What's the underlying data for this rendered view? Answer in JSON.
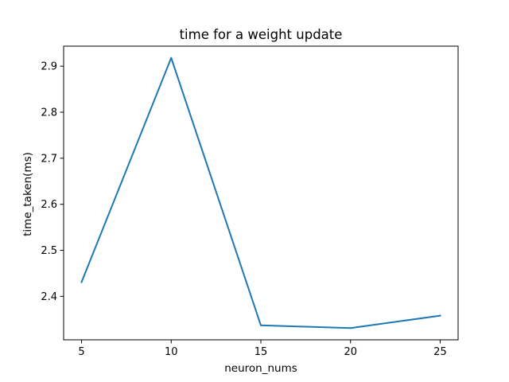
{
  "chart_data": {
    "type": "line",
    "title": "time for a weight update",
    "xlabel": "neuron_nums",
    "ylabel": "time_taken(ms)",
    "x": [
      5,
      10,
      15,
      20,
      25
    ],
    "series": [
      {
        "values": [
          2.431,
          2.918,
          2.337,
          2.331,
          2.358
        ],
        "color": "#1f77b4"
      }
    ],
    "xlim": [
      4,
      26
    ],
    "ylim": [
      2.3055,
      2.9435
    ],
    "xticks": [
      5,
      10,
      15,
      20,
      25
    ],
    "xtick_labels": [
      "5",
      "10",
      "15",
      "20",
      "25"
    ],
    "yticks": [
      2.4,
      2.5,
      2.6,
      2.7,
      2.8,
      2.9
    ],
    "ytick_labels": [
      "2.4",
      "2.5",
      "2.6",
      "2.7",
      "2.8",
      "2.9"
    ],
    "grid": false,
    "legend": "none"
  }
}
